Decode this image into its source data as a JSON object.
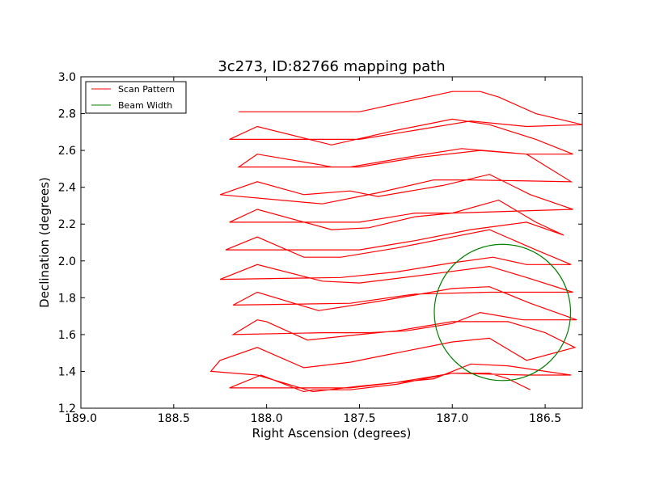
{
  "chart_data": {
    "type": "line",
    "title": "3c273, ID:82766 mapping path",
    "xlabel": "Right Ascension (degrees)",
    "ylabel": "Declination (degrees)",
    "xlim": [
      189.0,
      186.3
    ],
    "ylim": [
      1.2,
      3.0
    ],
    "xticks": [
      189.0,
      188.5,
      188.0,
      187.5,
      187.0,
      186.5
    ],
    "xtick_labels": [
      "189.0",
      "188.5",
      "188.0",
      "187.5",
      "187.0",
      "186.5"
    ],
    "yticks": [
      1.2,
      1.4,
      1.6,
      1.8,
      2.0,
      2.2,
      2.4,
      2.6,
      2.8,
      3.0
    ],
    "ytick_labels": [
      "1.2",
      "1.4",
      "1.6",
      "1.8",
      "2.0",
      "2.2",
      "2.4",
      "2.6",
      "2.8",
      "3.0"
    ],
    "grid": false,
    "legend_position": "top-left",
    "series": [
      {
        "name": "Scan Pattern",
        "color": "#ff0000",
        "points": [
          [
            186.58,
            1.3
          ],
          [
            186.7,
            1.36
          ],
          [
            186.8,
            1.39
          ],
          [
            187.0,
            1.39
          ],
          [
            187.3,
            1.33
          ],
          [
            187.55,
            1.3
          ],
          [
            187.75,
            1.3
          ],
          [
            187.8,
            1.29
          ],
          [
            188.03,
            1.38
          ],
          [
            188.2,
            1.31
          ],
          [
            187.55,
            1.31
          ],
          [
            187.3,
            1.34
          ],
          [
            187.0,
            1.39
          ],
          [
            186.6,
            1.38
          ],
          [
            186.36,
            1.38
          ],
          [
            186.7,
            1.43
          ],
          [
            186.9,
            1.44
          ],
          [
            187.1,
            1.36
          ],
          [
            187.5,
            1.32
          ],
          [
            187.75,
            1.29
          ],
          [
            188.05,
            1.38
          ],
          [
            188.3,
            1.4
          ],
          [
            188.25,
            1.46
          ],
          [
            188.05,
            1.53
          ],
          [
            187.8,
            1.42
          ],
          [
            187.55,
            1.45
          ],
          [
            187.35,
            1.49
          ],
          [
            187.0,
            1.56
          ],
          [
            186.8,
            1.58
          ],
          [
            186.6,
            1.46
          ],
          [
            186.34,
            1.53
          ],
          [
            186.5,
            1.61
          ],
          [
            186.7,
            1.67
          ],
          [
            187.0,
            1.67
          ],
          [
            187.3,
            1.62
          ],
          [
            187.5,
            1.6
          ],
          [
            187.78,
            1.57
          ],
          [
            188.0,
            1.67
          ],
          [
            188.05,
            1.68
          ],
          [
            188.18,
            1.6
          ],
          [
            187.7,
            1.61
          ],
          [
            187.45,
            1.61
          ],
          [
            187.25,
            1.62
          ],
          [
            187.0,
            1.66
          ],
          [
            186.85,
            1.72
          ],
          [
            186.62,
            1.68
          ],
          [
            186.33,
            1.68
          ],
          [
            186.58,
            1.77
          ],
          [
            186.8,
            1.86
          ],
          [
            187.0,
            1.85
          ],
          [
            187.4,
            1.78
          ],
          [
            187.72,
            1.73
          ],
          [
            188.05,
            1.83
          ],
          [
            188.18,
            1.76
          ],
          [
            187.55,
            1.77
          ],
          [
            187.2,
            1.82
          ],
          [
            186.8,
            1.83
          ],
          [
            186.35,
            1.83
          ],
          [
            186.6,
            1.91
          ],
          [
            186.8,
            1.97
          ],
          [
            187.1,
            1.93
          ],
          [
            187.5,
            1.88
          ],
          [
            187.7,
            1.89
          ],
          [
            188.05,
            1.98
          ],
          [
            188.25,
            1.9
          ],
          [
            187.6,
            1.91
          ],
          [
            187.3,
            1.94
          ],
          [
            187.0,
            1.99
          ],
          [
            186.78,
            2.02
          ],
          [
            186.6,
            1.98
          ],
          [
            186.36,
            1.98
          ],
          [
            186.55,
            2.06
          ],
          [
            186.8,
            2.17
          ],
          [
            187.0,
            2.13
          ],
          [
            187.3,
            2.07
          ],
          [
            187.6,
            2.02
          ],
          [
            187.8,
            2.02
          ],
          [
            188.05,
            2.13
          ],
          [
            188.22,
            2.06
          ],
          [
            187.5,
            2.06
          ],
          [
            187.2,
            2.11
          ],
          [
            186.9,
            2.17
          ],
          [
            186.6,
            2.21
          ],
          [
            186.4,
            2.14
          ],
          [
            186.55,
            2.21
          ],
          [
            186.75,
            2.33
          ],
          [
            187.0,
            2.26
          ],
          [
            187.2,
            2.24
          ],
          [
            187.45,
            2.18
          ],
          [
            187.65,
            2.17
          ],
          [
            188.05,
            2.28
          ],
          [
            188.2,
            2.21
          ],
          [
            187.5,
            2.21
          ],
          [
            187.2,
            2.26
          ],
          [
            187.0,
            2.26
          ],
          [
            186.35,
            2.28
          ],
          [
            186.58,
            2.36
          ],
          [
            186.8,
            2.47
          ],
          [
            187.05,
            2.41
          ],
          [
            187.4,
            2.35
          ],
          [
            187.55,
            2.38
          ],
          [
            187.8,
            2.36
          ],
          [
            188.05,
            2.43
          ],
          [
            188.25,
            2.36
          ],
          [
            187.7,
            2.31
          ],
          [
            187.4,
            2.37
          ],
          [
            187.1,
            2.44
          ],
          [
            186.9,
            2.44
          ],
          [
            186.36,
            2.43
          ],
          [
            186.6,
            2.58
          ],
          [
            186.85,
            2.6
          ],
          [
            187.2,
            2.56
          ],
          [
            187.5,
            2.51
          ],
          [
            187.65,
            2.51
          ],
          [
            187.7,
            2.52
          ],
          [
            188.05,
            2.58
          ],
          [
            188.15,
            2.51
          ],
          [
            187.55,
            2.51
          ],
          [
            187.2,
            2.57
          ],
          [
            186.95,
            2.61
          ],
          [
            186.6,
            2.58
          ],
          [
            186.35,
            2.58
          ],
          [
            186.55,
            2.66
          ],
          [
            186.8,
            2.74
          ],
          [
            187.0,
            2.77
          ],
          [
            187.3,
            2.71
          ],
          [
            187.65,
            2.63
          ],
          [
            188.05,
            2.73
          ],
          [
            188.2,
            2.66
          ],
          [
            187.5,
            2.66
          ],
          [
            187.2,
            2.71
          ],
          [
            186.9,
            2.76
          ],
          [
            186.6,
            2.73
          ],
          [
            186.3,
            2.74
          ],
          [
            186.55,
            2.8
          ],
          [
            186.75,
            2.89
          ],
          [
            186.85,
            2.92
          ],
          [
            187.0,
            2.92
          ],
          [
            187.5,
            2.81
          ],
          [
            187.75,
            2.81
          ],
          [
            188.15,
            2.81
          ]
        ]
      },
      {
        "name": "Beam Width",
        "color": "#008000",
        "shape": "circle",
        "center": [
          186.73,
          1.72
        ],
        "radius_ra": 0.367,
        "radius_dec": 0.37
      }
    ]
  }
}
